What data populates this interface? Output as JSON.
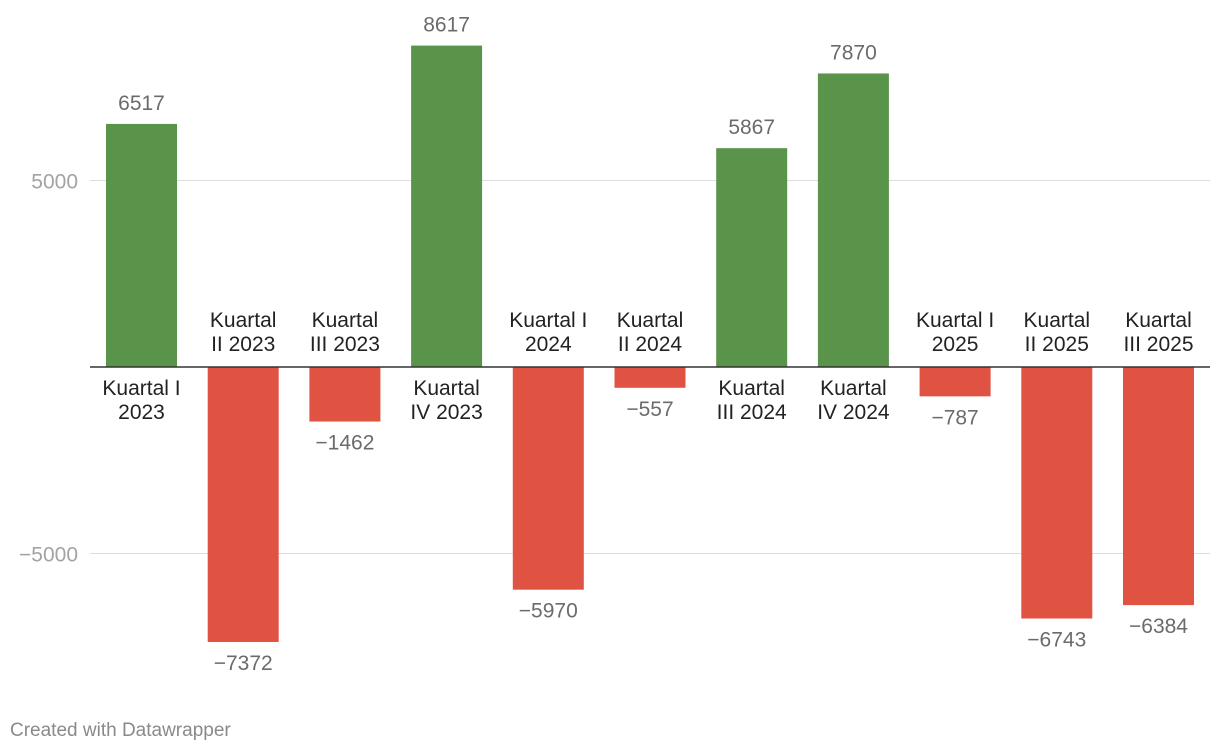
{
  "chart_data": {
    "type": "bar",
    "categories": [
      "Kuartal I 2023",
      "Kuartal II 2023",
      "Kuartal III 2023",
      "Kuartal IV 2023",
      "Kuartal I 2024",
      "Kuartal II 2024",
      "Kuartal III 2024",
      "Kuartal IV 2024",
      "Kuartal I 2025",
      "Kuartal II 2025",
      "Kuartal III 2025"
    ],
    "category_label_lines": [
      [
        "Kuartal I",
        "2023"
      ],
      [
        "Kuartal",
        "II 2023"
      ],
      [
        "Kuartal",
        "III 2023"
      ],
      [
        "Kuartal",
        "IV 2023"
      ],
      [
        "Kuartal I",
        "2024"
      ],
      [
        "Kuartal",
        "II 2024"
      ],
      [
        "Kuartal",
        "III 2024"
      ],
      [
        "Kuartal",
        "IV 2024"
      ],
      [
        "Kuartal I",
        "2025"
      ],
      [
        "Kuartal",
        "II 2025"
      ],
      [
        "Kuartal",
        "III 2025"
      ]
    ],
    "values": [
      6517,
      -7372,
      -1462,
      8617,
      -5970,
      -557,
      5867,
      7870,
      -787,
      -6743,
      -6384
    ],
    "value_labels": [
      "6517",
      "−7372",
      "−1462",
      "8617",
      "−5970",
      "−557",
      "5867",
      "7870",
      "−787",
      "−6743",
      "−6384"
    ],
    "yticks": [
      5000,
      -5000
    ],
    "ytick_labels": [
      "5000",
      "−5000"
    ],
    "ylim": [
      -8500,
      8800
    ],
    "grid": true,
    "colors": {
      "positive": "#5a944b",
      "negative": "#e05242"
    }
  },
  "credit": "Created with Datawrapper"
}
